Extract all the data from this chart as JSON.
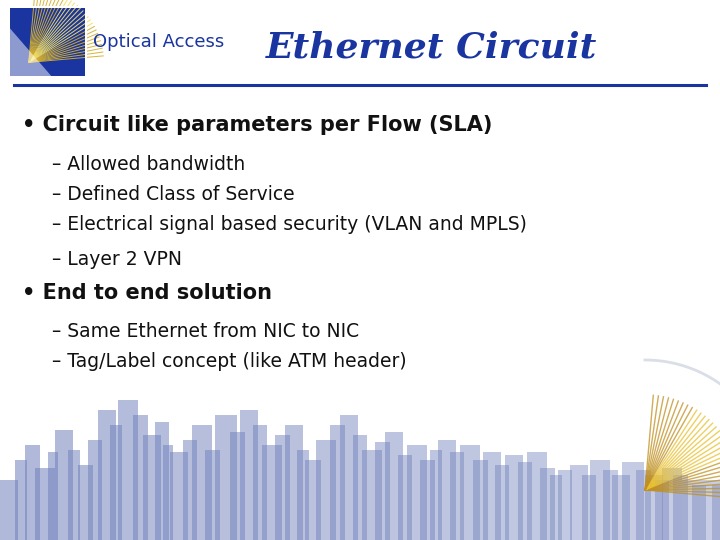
{
  "title": "Ethernet Circuit",
  "title_color": "#1a35a0",
  "title_fontsize": 26,
  "title_style": "italic",
  "title_weight": "bold",
  "line_color": "#1a35a0",
  "bg_color": "#ffffff",
  "bullet1_text": "Circuit like parameters per Flow (SLA)",
  "sub_items1": [
    "– Allowed bandwidth",
    "– Defined Class of Service",
    "– Electrical signal based security (VLAN and MPLS)",
    "– Layer 2 VPN"
  ],
  "bullet2_text": "End to end solution",
  "sub_items2": [
    "– Same Ethernet from NIC to NIC",
    "– Tag/Label concept (like ATM header)"
  ],
  "text_color": "#111111",
  "bullet_fontsize": 15,
  "sub_fontsize": 13.5,
  "logo_bg_color": "#1a35a0",
  "logo_text": "Optical Access",
  "logo_text_color": "#1a35a0",
  "skyline_color": "#7080bb",
  "sun_color": "#c8a020",
  "arc_color": "#c0c8d8"
}
